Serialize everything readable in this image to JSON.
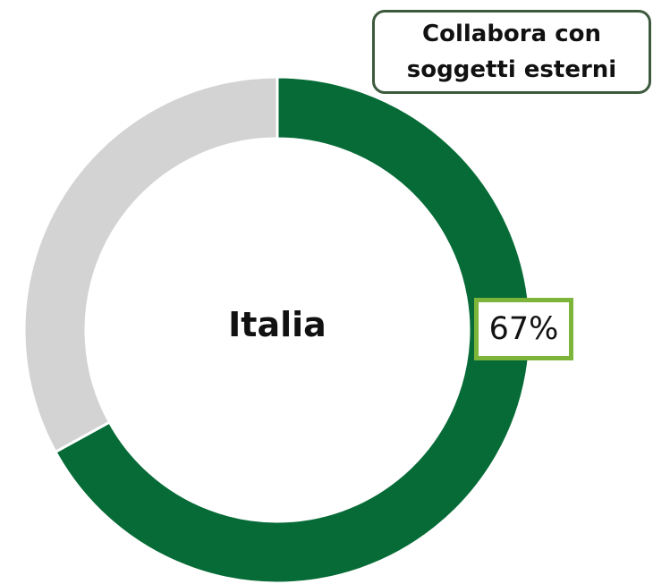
{
  "chart_data": {
    "type": "pie",
    "variant": "donut",
    "title": "Collabora con soggetti esterni",
    "center_label": "Italia",
    "slices": [
      {
        "value": 67,
        "color": "#066b36"
      },
      {
        "value": 33,
        "color": "#d3d3d3"
      }
    ],
    "data_labels": [
      "67%"
    ],
    "legend": "none"
  },
  "colors": {
    "primary": "#066b36",
    "remainder": "#d3d3d3",
    "title_border": "#3d5a3d",
    "label_border": "#7db53a"
  }
}
